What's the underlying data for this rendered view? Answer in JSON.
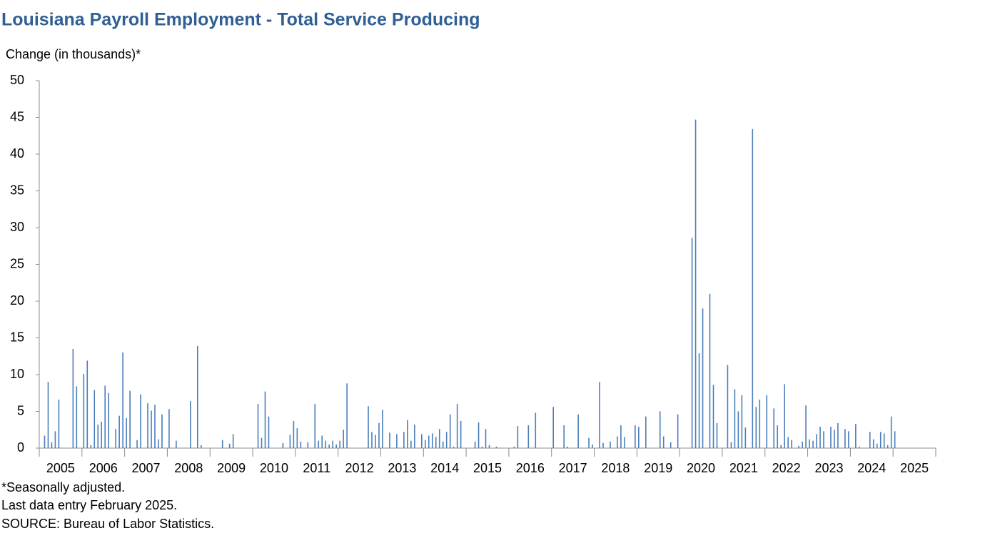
{
  "chart_data": {
    "type": "bar",
    "title": "Louisiana Payroll Employment - Total Service Producing",
    "y_label": "Change (in thousands)*",
    "notes": [
      "*Seasonally adjusted.",
      "Last data entry February 2025.",
      "SOURCE: Bureau of Labor Statistics."
    ],
    "color": "#4a7ebb",
    "ylim": [
      0,
      50
    ],
    "yticks": [
      0,
      5,
      10,
      15,
      20,
      25,
      30,
      35,
      40,
      45,
      50
    ],
    "categories": [
      "2005",
      null,
      null,
      null,
      null,
      null,
      null,
      null,
      null,
      null,
      null,
      null,
      "2006",
      null,
      null,
      null,
      null,
      null,
      null,
      null,
      null,
      null,
      null,
      null,
      "2007",
      null,
      null,
      null,
      null,
      null,
      null,
      null,
      null,
      null,
      null,
      null,
      "2008",
      null,
      null,
      null,
      null,
      null,
      null,
      null,
      null,
      null,
      null,
      null,
      "2009",
      null,
      null,
      null,
      null,
      null,
      null,
      null,
      null,
      null,
      null,
      null,
      "2010",
      null,
      null,
      null,
      null,
      null,
      null,
      null,
      null,
      null,
      null,
      null,
      "2011",
      null,
      null,
      null,
      null,
      null,
      null,
      null,
      null,
      null,
      null,
      null,
      "2012",
      null,
      null,
      null,
      null,
      null,
      null,
      null,
      null,
      null,
      null,
      null,
      "2013",
      null,
      null,
      null,
      null,
      null,
      null,
      null,
      null,
      null,
      null,
      null,
      "2014",
      null,
      null,
      null,
      null,
      null,
      null,
      null,
      null,
      null,
      null,
      null,
      "2015",
      null,
      null,
      null,
      null,
      null,
      null,
      null,
      null,
      null,
      null,
      null,
      "2016",
      null,
      null,
      null,
      null,
      null,
      null,
      null,
      null,
      null,
      null,
      null,
      "2017",
      null,
      null,
      null,
      null,
      null,
      null,
      null,
      null,
      null,
      null,
      null,
      "2018",
      null,
      null,
      null,
      null,
      null,
      null,
      null,
      null,
      null,
      null,
      null,
      "2019",
      null,
      null,
      null,
      null,
      null,
      null,
      null,
      null,
      null,
      null,
      null,
      "2020",
      null,
      null,
      null,
      null,
      null,
      null,
      null,
      null,
      null,
      null,
      null,
      "2021",
      null,
      null,
      null,
      null,
      null,
      null,
      null,
      null,
      null,
      null,
      null,
      "2022",
      null,
      null,
      null,
      null,
      null,
      null,
      null,
      null,
      null,
      null,
      null,
      "2023",
      null,
      null,
      null,
      null,
      null,
      null,
      null,
      null,
      null,
      null,
      null,
      "2024",
      null,
      null,
      null,
      null,
      null,
      null,
      null,
      null,
      null,
      null,
      null,
      "2025",
      null,
      null,
      null,
      null,
      null,
      null,
      null,
      null,
      null,
      null,
      null
    ],
    "values": [
      0,
      1.7,
      9.0,
      0.8,
      2.3,
      6.6,
      0,
      0,
      0,
      13.5,
      8.4,
      0,
      10.1,
      11.9,
      0.4,
      7.9,
      3.2,
      3.6,
      8.5,
      7.5,
      0,
      2.6,
      4.4,
      13.0,
      4.1,
      7.8,
      0,
      1.1,
      7.3,
      0,
      6.1,
      5.1,
      5.9,
      1.2,
      4.6,
      0,
      5.3,
      0,
      1.0,
      0,
      0,
      0,
      6.4,
      0,
      13.9,
      0.4,
      0,
      0,
      0,
      0,
      0,
      1.1,
      0,
      0.6,
      1.9,
      0,
      0,
      0,
      0,
      0,
      0,
      6.0,
      1.4,
      7.7,
      4.3,
      0,
      0,
      0,
      0.7,
      0,
      1.8,
      3.7,
      2.7,
      0.9,
      0,
      0.8,
      0,
      6.0,
      1.0,
      1.7,
      1.0,
      0.5,
      1.0,
      0.5,
      1.0,
      2.5,
      8.8,
      0,
      0,
      0,
      0,
      0,
      5.7,
      2.2,
      1.8,
      3.4,
      5.2,
      0,
      2.1,
      0,
      1.9,
      0,
      2.2,
      3.8,
      1.0,
      3.2,
      0,
      1.9,
      1.1,
      1.7,
      2.0,
      1.5,
      2.6,
      0.9,
      2.2,
      4.6,
      0.2,
      6.0,
      3.7,
      0,
      0,
      0,
      0.9,
      3.5,
      0.2,
      2.6,
      0.4,
      0,
      0.2,
      0,
      0,
      0,
      0,
      0.2,
      3.0,
      0,
      0,
      3.1,
      0,
      4.8,
      0,
      0,
      0,
      0,
      5.6,
      0,
      0,
      3.1,
      0.2,
      0,
      0,
      4.6,
      0,
      0,
      1.4,
      0.5,
      0,
      9.0,
      0.7,
      0,
      0.9,
      0,
      1.6,
      3.1,
      1.5,
      0,
      0,
      3.1,
      2.9,
      0,
      4.3,
      0,
      0,
      0,
      5.0,
      1.6,
      0,
      0.8,
      0,
      4.6,
      0,
      0,
      0,
      28.6,
      44.7,
      12.9,
      19.0,
      0,
      21.0,
      8.6,
      3.4,
      0,
      0,
      11.3,
      0.8,
      8.0,
      5.0,
      7.2,
      2.8,
      0,
      43.4,
      5.6,
      6.6,
      0,
      7.2,
      0,
      5.4,
      3.1,
      0.4,
      8.7,
      1.5,
      1.1,
      0,
      0.3,
      0.9,
      5.8,
      1.2,
      1.0,
      1.9,
      2.9,
      2.3,
      0,
      2.9,
      2.5,
      3.4,
      0,
      2.6,
      2.3,
      0,
      3.3,
      0.2,
      0,
      0,
      2.2,
      1.2,
      0.6,
      2.2,
      2.0,
      0.4,
      4.3,
      2.3,
      0,
      null,
      null,
      null,
      null,
      null,
      null,
      null,
      null,
      null,
      null
    ]
  }
}
